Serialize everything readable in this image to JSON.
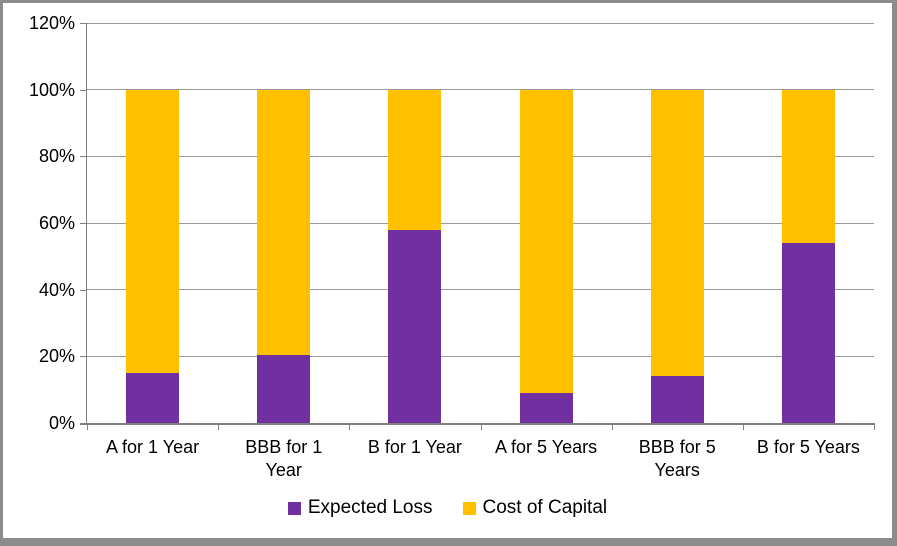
{
  "chart_data": {
    "type": "bar",
    "subtype": "stacked-100-column",
    "title": "",
    "xlabel": "",
    "ylabel": "",
    "categories": [
      "A for 1 Year",
      "BBB for 1\nYear",
      "B for 1 Year",
      "A for 5 Years",
      "BBB for 5\nYears",
      "B for 5 Years"
    ],
    "series": [
      {
        "name": "Expected Loss",
        "color": "#7030A0",
        "values": [
          15,
          20.5,
          58,
          9,
          14,
          54
        ]
      },
      {
        "name": "Cost of Capital",
        "color": "#FFC000",
        "values": [
          85,
          79.5,
          42,
          91,
          86,
          46
        ]
      }
    ],
    "stack_totals": [
      100,
      100,
      100,
      100,
      100,
      100
    ],
    "ylim": [
      0,
      120
    ],
    "yticks": [
      {
        "value": 0,
        "label": "0%"
      },
      {
        "value": 20,
        "label": "20%"
      },
      {
        "value": 40,
        "label": "40%"
      },
      {
        "value": 60,
        "label": "60%"
      },
      {
        "value": 80,
        "label": "80%"
      },
      {
        "value": 100,
        "label": "100%"
      },
      {
        "value": 120,
        "label": "120%"
      }
    ],
    "grid": true,
    "legend_position": "bottom"
  },
  "style_colors": {
    "plot_background": "#ffffff",
    "gridline": "#9a9a9a",
    "axis": "#808080",
    "frame_border": "#8c8c8c",
    "text": "#000000"
  }
}
